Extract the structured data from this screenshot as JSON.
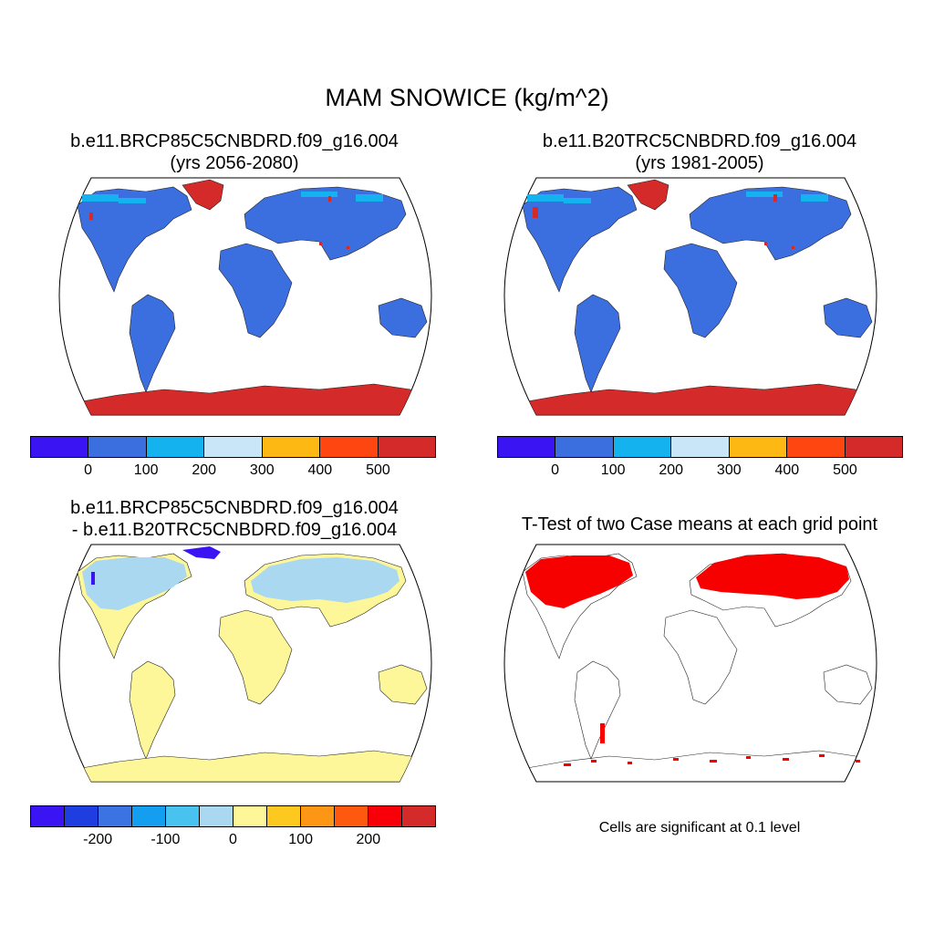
{
  "title": "MAM SNOWICE (kg/m^2)",
  "panels": [
    {
      "line1": "b.e11.BRCP85C5CNBDRD.f09_g16.004",
      "line2": "(yrs 2056-2080)"
    },
    {
      "line1": "b.e11.B20TRC5CNBDRD.f09_g16.004",
      "line2": "(yrs 1981-2005)"
    },
    {
      "line1": "b.e11.BRCP85C5CNBDRD.f09_g16.004",
      "line2": "- b.e11.B20TRC5CNBDRD.f09_g16.004"
    },
    {
      "line1": "T-Test of two Case means at each grid point"
    }
  ],
  "note": "Cells are significant at 0.1 level",
  "colorbars": {
    "absolute": {
      "colors": [
        "#3a14f2",
        "#3b6fe0",
        "#14b2ee",
        "#c8e6f7",
        "#fdb814",
        "#fd4610",
        "#d42a2a"
      ],
      "ticks": [
        {
          "label": "0",
          "boundary": 1
        },
        {
          "label": "100",
          "boundary": 2
        },
        {
          "label": "200",
          "boundary": 3
        },
        {
          "label": "300",
          "boundary": 4
        },
        {
          "label": "400",
          "boundary": 5
        },
        {
          "label": "500",
          "boundary": 6
        }
      ]
    },
    "difference": {
      "colors": [
        "#3a14f2",
        "#1e3ee0",
        "#3b74e2",
        "#149ef0",
        "#48c2ee",
        "#aad8f0",
        "#fdf79a",
        "#fdc820",
        "#fd9614",
        "#fd5a10",
        "#f7000a",
        "#d42a2a"
      ],
      "ticks": [
        {
          "label": "-200",
          "boundary": 2
        },
        {
          "label": "-100",
          "boundary": 4
        },
        {
          "label": "0",
          "boundary": 6
        },
        {
          "label": "100",
          "boundary": 8
        },
        {
          "label": "200",
          "boundary": 10
        }
      ]
    }
  },
  "map_colors": {
    "ocean": "#ffffff",
    "land_low": "#3b6fe0",
    "land_high": "#d42a2a",
    "land_light": "#14b2ee",
    "diff_base": "#fdf79a",
    "diff_neg": "#aad8f0",
    "diff_strong_neg": "#3a14f2",
    "significant": "#f70000"
  }
}
